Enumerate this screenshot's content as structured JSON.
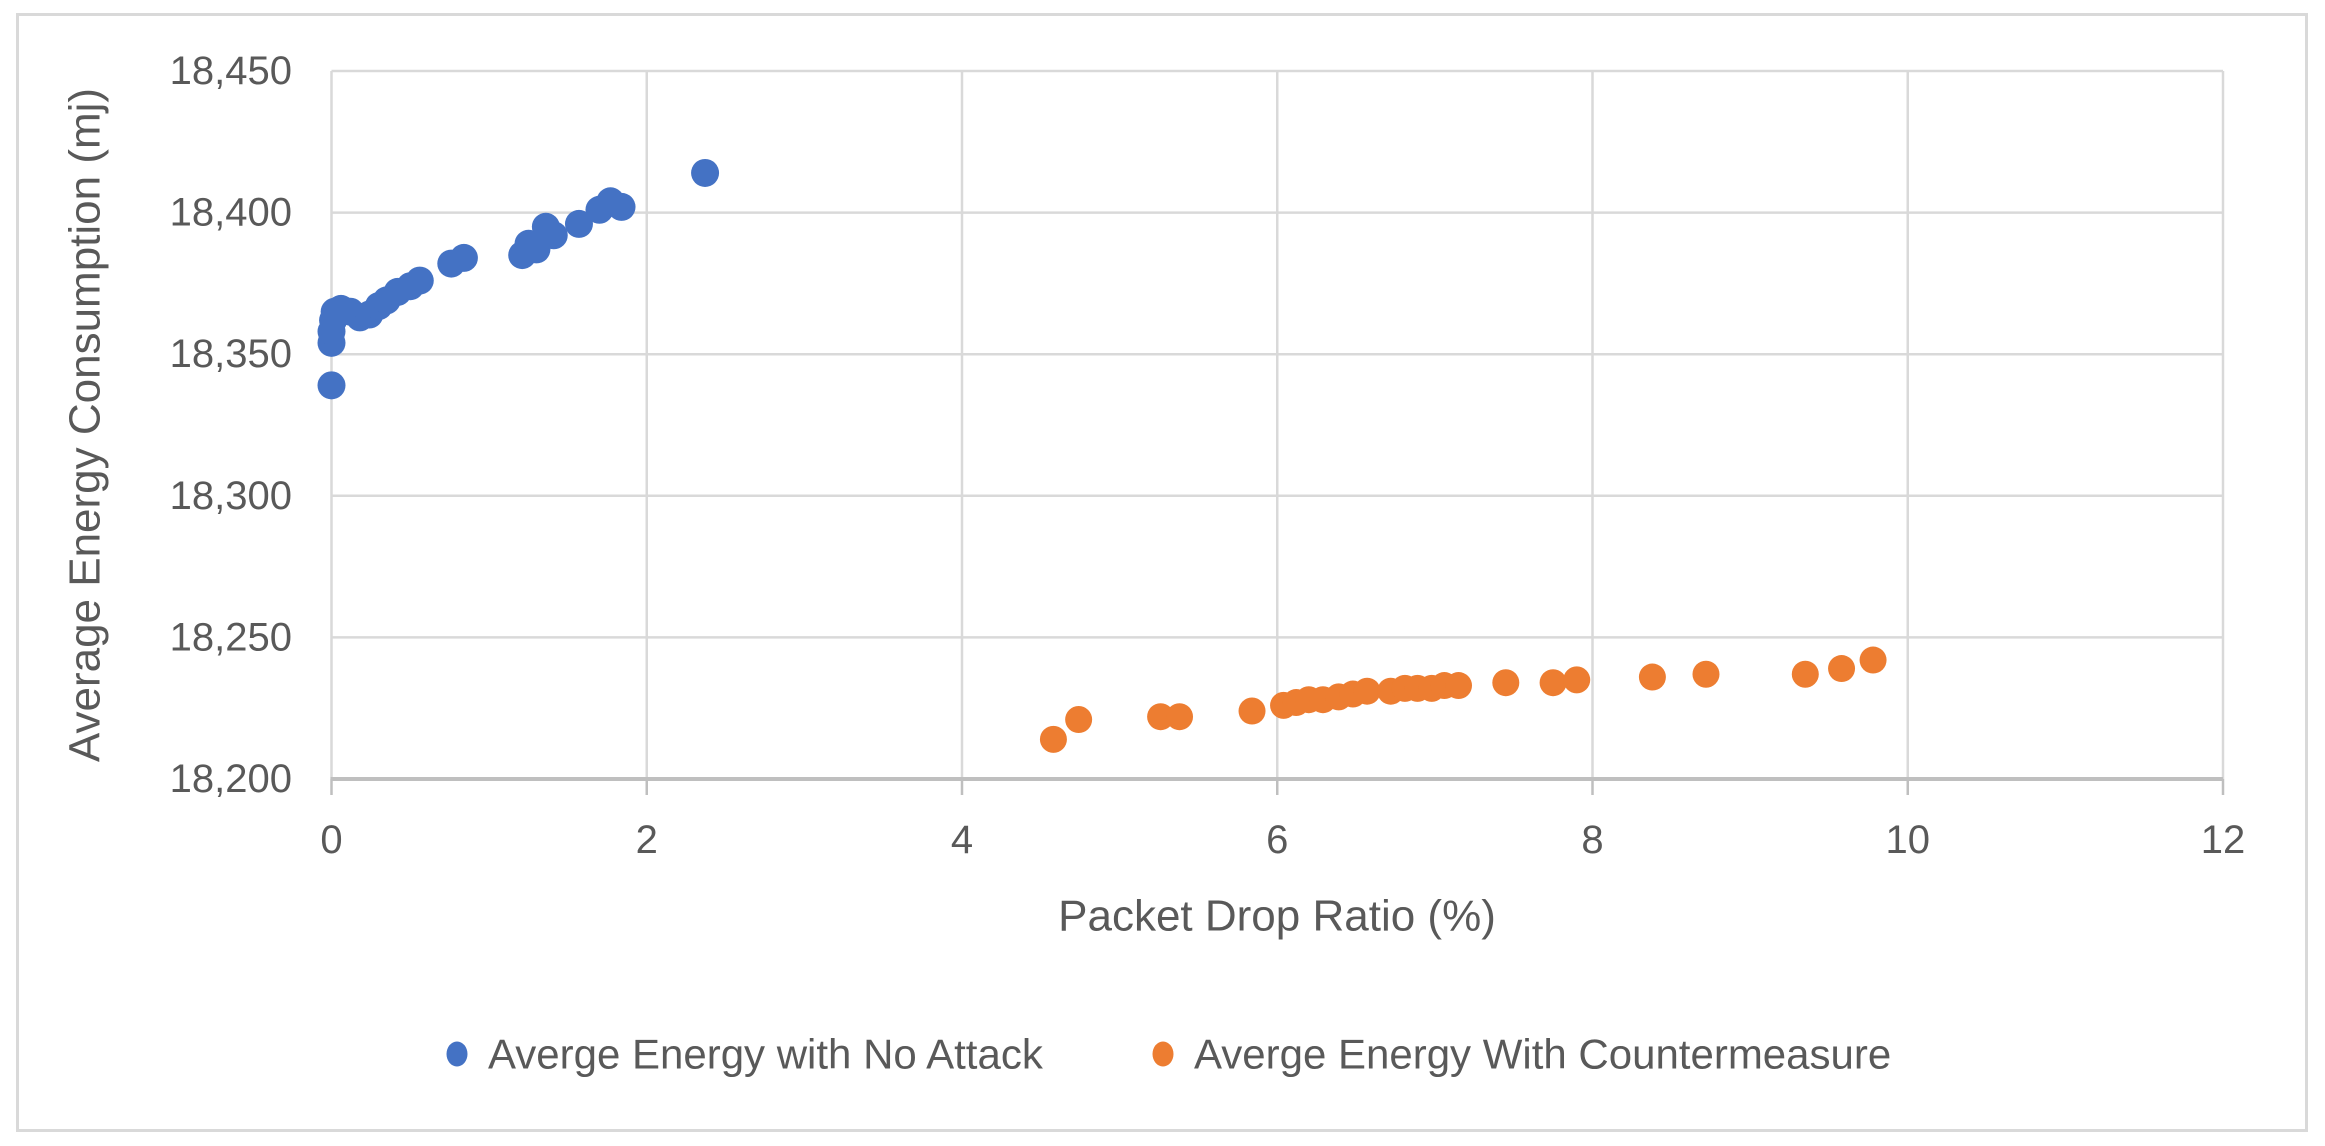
{
  "chart_data": {
    "type": "scatter",
    "title": "",
    "xlabel": "Packet Drop Ratio (%)",
    "ylabel": "Average Energy Consumption (mj)",
    "xlim": [
      0,
      12
    ],
    "ylim": [
      18200,
      18450
    ],
    "xticks": [
      0,
      2,
      4,
      6,
      8,
      10,
      12
    ],
    "xtick_labels": [
      "0",
      "2",
      "4",
      "6",
      "8",
      "10",
      "12"
    ],
    "yticks": [
      18200,
      18250,
      18300,
      18350,
      18400,
      18450
    ],
    "ytick_labels": [
      "18,200",
      "18,250",
      "18,300",
      "18,350",
      "18,400",
      "18,450"
    ],
    "grid": true,
    "legend_position": "bottom",
    "series": [
      {
        "name": "Averge Energy with No Attack",
        "color": "#4472C4",
        "marker": "circle",
        "marker_size": 14,
        "points": [
          [
            0.0,
            18339
          ],
          [
            0.0,
            18354
          ],
          [
            0.0,
            18358
          ],
          [
            0.01,
            18362
          ],
          [
            0.02,
            18365
          ],
          [
            0.06,
            18366
          ],
          [
            0.12,
            18365
          ],
          [
            0.18,
            18363
          ],
          [
            0.24,
            18364
          ],
          [
            0.3,
            18367
          ],
          [
            0.35,
            18369
          ],
          [
            0.42,
            18372
          ],
          [
            0.5,
            18374
          ],
          [
            0.56,
            18376
          ],
          [
            0.76,
            18382
          ],
          [
            0.84,
            18384
          ],
          [
            1.21,
            18385
          ],
          [
            1.25,
            18389
          ],
          [
            1.3,
            18387
          ],
          [
            1.36,
            18395
          ],
          [
            1.41,
            18392
          ],
          [
            1.57,
            18396
          ],
          [
            1.7,
            18401
          ],
          [
            1.77,
            18404
          ],
          [
            1.84,
            18402
          ],
          [
            2.37,
            18414
          ]
        ]
      },
      {
        "name": "Averge Energy With Countermeasure",
        "color": "#ED7D31",
        "marker": "circle",
        "marker_size": 13.5,
        "points": [
          [
            4.58,
            18214
          ],
          [
            4.74,
            18221
          ],
          [
            5.26,
            18222
          ],
          [
            5.38,
            18222
          ],
          [
            5.84,
            18224
          ],
          [
            6.04,
            18226
          ],
          [
            6.12,
            18227
          ],
          [
            6.2,
            18228
          ],
          [
            6.29,
            18228
          ],
          [
            6.39,
            18229
          ],
          [
            6.48,
            18230
          ],
          [
            6.57,
            18231
          ],
          [
            6.72,
            18231
          ],
          [
            6.81,
            18232
          ],
          [
            6.89,
            18232
          ],
          [
            6.98,
            18232
          ],
          [
            7.06,
            18233
          ],
          [
            7.15,
            18233
          ],
          [
            7.45,
            18234
          ],
          [
            7.75,
            18234
          ],
          [
            7.9,
            18235
          ],
          [
            8.38,
            18236
          ],
          [
            8.72,
            18237
          ],
          [
            9.35,
            18237
          ],
          [
            9.58,
            18239
          ],
          [
            9.78,
            18242
          ]
        ]
      }
    ]
  },
  "colors": {
    "background": "#FFFFFF",
    "border": "#D9D9D9",
    "gridline": "#D9D9D9",
    "axis_line": "#BFBFBF",
    "tick_text": "#595959",
    "title_text": "#595959"
  }
}
